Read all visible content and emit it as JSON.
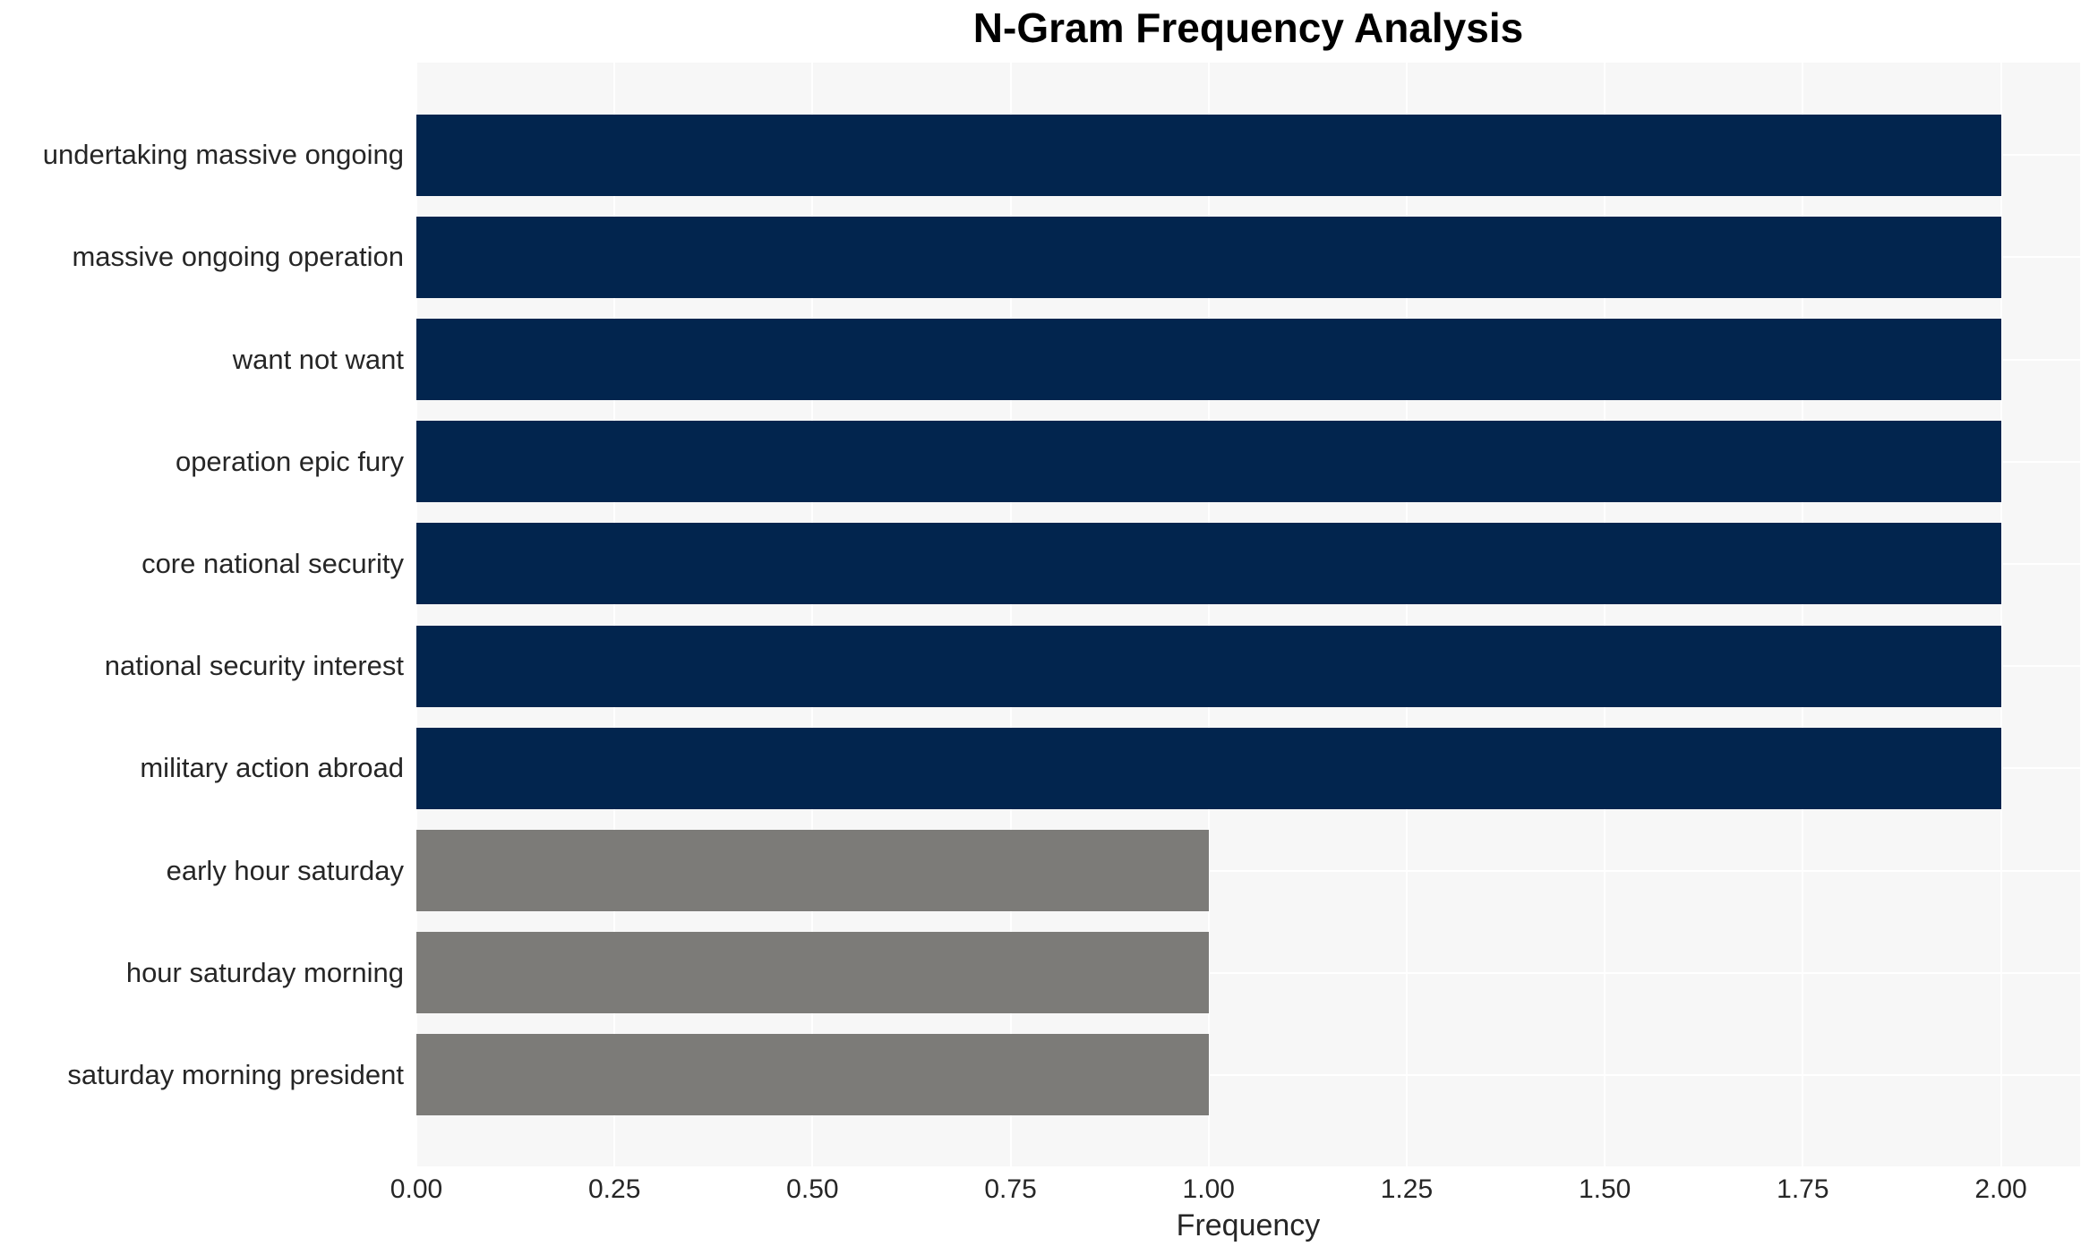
{
  "chart_data": {
    "type": "bar",
    "orientation": "horizontal",
    "title": "N-Gram Frequency Analysis",
    "xlabel": "Frequency",
    "ylabel": "",
    "xlim": [
      0,
      2.1
    ],
    "grid": true,
    "legend": false,
    "xticks": [
      {
        "label": "0.00",
        "value": 0
      },
      {
        "label": "0.25",
        "value": 0.25
      },
      {
        "label": "0.50",
        "value": 0.5
      },
      {
        "label": "0.75",
        "value": 0.75
      },
      {
        "label": "1.00",
        "value": 1
      },
      {
        "label": "1.25",
        "value": 1.25
      },
      {
        "label": "1.50",
        "value": 1.5
      },
      {
        "label": "1.75",
        "value": 1.75
      },
      {
        "label": "2.00",
        "value": 2
      }
    ],
    "categories": [
      "undertaking massive ongoing",
      "massive ongoing operation",
      "want not want",
      "operation epic fury",
      "core national security",
      "national security interest",
      "military action abroad",
      "early hour saturday",
      "hour saturday morning",
      "saturday morning president"
    ],
    "values": [
      2,
      2,
      2,
      2,
      2,
      2,
      2,
      1,
      1,
      1
    ],
    "bars": [
      {
        "label": "undertaking massive ongoing",
        "value": 2,
        "color": "#02254e"
      },
      {
        "label": "massive ongoing operation",
        "value": 2,
        "color": "#02254e"
      },
      {
        "label": "want not want",
        "value": 2,
        "color": "#02254e"
      },
      {
        "label": "operation epic fury",
        "value": 2,
        "color": "#02254e"
      },
      {
        "label": "core national security",
        "value": 2,
        "color": "#02254e"
      },
      {
        "label": "national security interest",
        "value": 2,
        "color": "#02254e"
      },
      {
        "label": "military action abroad",
        "value": 2,
        "color": "#02254e"
      },
      {
        "label": "early hour saturday",
        "value": 1,
        "color": "#7c7b78"
      },
      {
        "label": "hour saturday morning",
        "value": 1,
        "color": "#7c7b78"
      },
      {
        "label": "saturday morning president",
        "value": 1,
        "color": "#7c7b78"
      }
    ]
  },
  "style": {
    "plot_bg": "#f7f7f7",
    "grid_color": "#ffffff",
    "bar_navy": "#02254e",
    "bar_gray": "#7c7b78",
    "text_color": "#262626",
    "title_color": "#000000"
  }
}
